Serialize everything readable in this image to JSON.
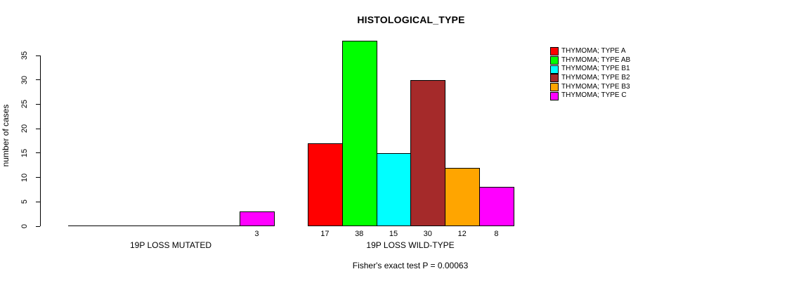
{
  "chart_data": {
    "type": "bar",
    "title": "HISTOLOGICAL_TYPE",
    "ylabel": "number of cases",
    "xlabel": "",
    "ylim": [
      0,
      35
    ],
    "yticks": [
      0,
      5,
      10,
      15,
      20,
      25,
      30,
      35
    ],
    "grid": false,
    "legend_position": "right",
    "categories": [
      "19P LOSS MUTATED",
      "19P LOSS WILD-TYPE"
    ],
    "series": [
      {
        "name": "THYMOMA; TYPE A",
        "color": "#FF0000",
        "values": [
          0,
          17
        ]
      },
      {
        "name": "THYMOMA; TYPE AB",
        "color": "#00FF00",
        "values": [
          0,
          38
        ]
      },
      {
        "name": "THYMOMA; TYPE B1",
        "color": "#00FFFF",
        "values": [
          0,
          15
        ]
      },
      {
        "name": "THYMOMA; TYPE B2",
        "color": "#A52A2A",
        "values": [
          0,
          30
        ]
      },
      {
        "name": "THYMOMA; TYPE B3",
        "color": "#FFA500",
        "values": [
          0,
          12
        ]
      },
      {
        "name": "THYMOMA; TYPE C",
        "color": "#FF00FF",
        "values": [
          3,
          8
        ]
      }
    ],
    "bar_value_labels": {
      "mutated": [
        "3"
      ],
      "wild_type": [
        "17",
        "38",
        "15",
        "30",
        "12",
        "8"
      ]
    },
    "annotation": "Fisher's exact test P = 0.00063",
    "axis_color": "#000000",
    "bar_border_color": "#000000"
  }
}
